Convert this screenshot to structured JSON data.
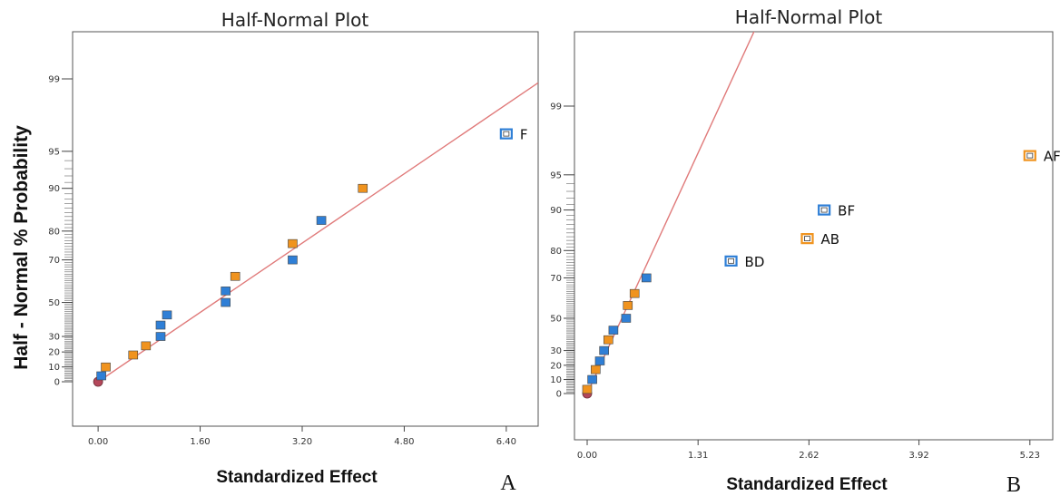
{
  "colors": {
    "blue": "#2f7fd6",
    "orange": "#f0931e",
    "line": "#e07a7a",
    "origin": "#b4475a"
  },
  "figure": {
    "y_title": "Half - Normal % Probability"
  },
  "chart_data": [
    {
      "type": "scatter",
      "panel": "A",
      "title": "Half-Normal Plot",
      "xlabel": "Standardized Effect",
      "ylabel": "Half - Normal % Probability",
      "x_ticks": [
        "0.00",
        "1.60",
        "3.20",
        "4.80",
        "6.40"
      ],
      "y_ticks": [
        "0",
        "10",
        "20",
        "30",
        "50",
        "70",
        "80",
        "90",
        "95",
        "99"
      ],
      "xlim": [
        -0.4,
        6.9
      ],
      "grid": false,
      "reference_line": {
        "from": [
          0.0,
          0
        ],
        "to": [
          6.9,
          98.9
        ]
      },
      "points": [
        {
          "x": 0.0,
          "y": 0,
          "shape": "circle",
          "color": "origin"
        },
        {
          "x": 0.05,
          "y": 4,
          "color": "blue"
        },
        {
          "x": 0.12,
          "y": 10,
          "color": "orange"
        },
        {
          "x": 0.55,
          "y": 18,
          "color": "orange"
        },
        {
          "x": 0.75,
          "y": 24,
          "color": "orange"
        },
        {
          "x": 0.98,
          "y": 30,
          "color": "blue"
        },
        {
          "x": 0.98,
          "y": 37,
          "color": "blue"
        },
        {
          "x": 1.08,
          "y": 43,
          "color": "blue"
        },
        {
          "x": 2.0,
          "y": 50,
          "color": "blue"
        },
        {
          "x": 2.0,
          "y": 56,
          "color": "blue"
        },
        {
          "x": 2.15,
          "y": 63,
          "color": "orange"
        },
        {
          "x": 3.05,
          "y": 70,
          "color": "blue"
        },
        {
          "x": 3.05,
          "y": 76,
          "color": "orange"
        },
        {
          "x": 3.5,
          "y": 83,
          "color": "blue"
        },
        {
          "x": 4.15,
          "y": 90,
          "color": "orange"
        },
        {
          "x": 6.4,
          "y": 96.5,
          "color": "blue",
          "hollow": true,
          "label": "F"
        }
      ]
    },
    {
      "type": "scatter",
      "panel": "B",
      "title": "Half-Normal Plot",
      "xlabel": "Standardized Effect",
      "x_ticks": [
        "0.00",
        "1.31",
        "2.62",
        "3.92",
        "5.23"
      ],
      "y_ticks": [
        "0",
        "10",
        "20",
        "30",
        "50",
        "70",
        "80",
        "90",
        "95",
        "99"
      ],
      "xlim": [
        -0.15,
        5.5
      ],
      "grid": false,
      "reference_line": {
        "from": [
          0.0,
          0
        ],
        "to": [
          2.0,
          99.9
        ]
      },
      "points": [
        {
          "x": 0.0,
          "y": 0,
          "shape": "circle",
          "color": "origin"
        },
        {
          "x": 0.0,
          "y": 3,
          "color": "orange"
        },
        {
          "x": 0.06,
          "y": 10,
          "color": "blue"
        },
        {
          "x": 0.1,
          "y": 17,
          "color": "orange"
        },
        {
          "x": 0.15,
          "y": 23,
          "color": "blue"
        },
        {
          "x": 0.2,
          "y": 30,
          "color": "blue"
        },
        {
          "x": 0.25,
          "y": 37,
          "color": "orange"
        },
        {
          "x": 0.31,
          "y": 43,
          "color": "blue"
        },
        {
          "x": 0.46,
          "y": 50,
          "color": "blue"
        },
        {
          "x": 0.48,
          "y": 57,
          "color": "orange"
        },
        {
          "x": 0.56,
          "y": 63,
          "color": "orange"
        },
        {
          "x": 0.7,
          "y": 70,
          "color": "blue"
        },
        {
          "x": 1.7,
          "y": 76.5,
          "color": "blue",
          "hollow": true,
          "label": "BD"
        },
        {
          "x": 2.6,
          "y": 83.5,
          "color": "orange",
          "hollow": true,
          "label": "AB"
        },
        {
          "x": 2.8,
          "y": 90,
          "color": "blue",
          "hollow": true,
          "label": "BF"
        },
        {
          "x": 5.23,
          "y": 96.7,
          "color": "orange",
          "hollow": true,
          "label": "AF"
        }
      ]
    }
  ]
}
